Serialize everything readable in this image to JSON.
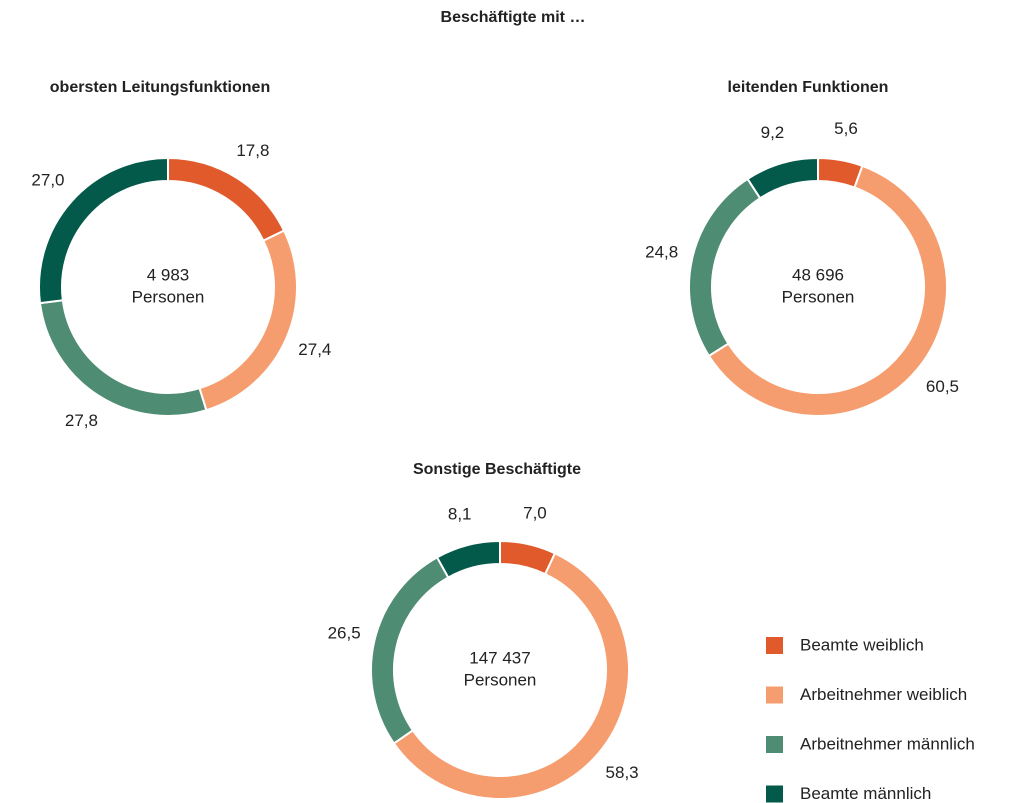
{
  "title": "Beschäftigte mit …",
  "chart_data": [
    {
      "type": "donut",
      "title": "obersten Leitungsfunktionen",
      "categories": [
        "Beamte weiblich",
        "Arbeitnehmer weiblich",
        "Arbeitnehmer männlich",
        "Beamte männlich"
      ],
      "values": [
        17.8,
        27.4,
        27.8,
        27.0
      ],
      "value_labels": [
        "17,8",
        "27,4",
        "27,8",
        "27,0"
      ],
      "colors": [
        "#e05a2b",
        "#f59d6e",
        "#4f8c74",
        "#03594a"
      ],
      "center_text": [
        "4 983",
        "Personen"
      ]
    },
    {
      "type": "donut",
      "title": "leitenden Funktionen",
      "categories": [
        "Beamte weiblich",
        "Arbeitnehmer weiblich",
        "Arbeitnehmer männlich",
        "Beamte männlich"
      ],
      "values": [
        5.6,
        60.5,
        24.8,
        9.2
      ],
      "value_labels": [
        "5,6",
        "60,5",
        "24,8",
        "9,2"
      ],
      "colors": [
        "#e05a2b",
        "#f59d6e",
        "#4f8c74",
        "#03594a"
      ],
      "center_text": [
        "48 696",
        "Personen"
      ]
    },
    {
      "type": "donut",
      "title": "Sonstige Beschäftigte",
      "categories": [
        "Beamte weiblich",
        "Arbeitnehmer weiblich",
        "Arbeitnehmer männlich",
        "Beamte männlich"
      ],
      "values": [
        7.0,
        58.3,
        26.5,
        8.1
      ],
      "value_labels": [
        "7,0",
        "58,3",
        "26,5",
        "8,1"
      ],
      "colors": [
        "#e05a2b",
        "#f59d6e",
        "#4f8c74",
        "#03594a"
      ],
      "center_text": [
        "147 437",
        "Personen"
      ]
    }
  ]
}
